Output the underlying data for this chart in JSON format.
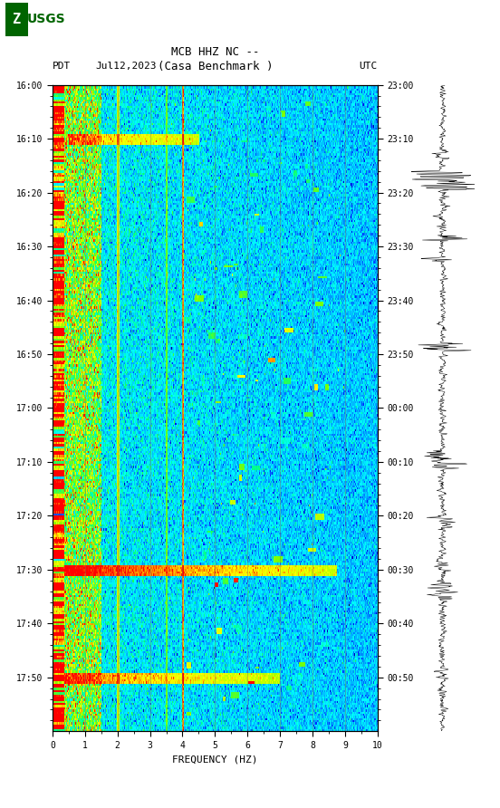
{
  "title_line1": "MCB HHZ NC --",
  "title_line2": "(Casa Benchmark )",
  "date_label": "Jul12,2023",
  "left_tz": "PDT",
  "right_tz": "UTC",
  "left_yticks": [
    "16:00",
    "16:10",
    "16:20",
    "16:30",
    "16:40",
    "16:50",
    "17:00",
    "17:10",
    "17:20",
    "17:30",
    "17:40",
    "17:50"
  ],
  "right_yticks": [
    "23:00",
    "23:10",
    "23:20",
    "23:30",
    "23:40",
    "23:50",
    "00:00",
    "00:10",
    "00:20",
    "00:30",
    "00:40",
    "00:50"
  ],
  "freq_min": 0,
  "freq_max": 10,
  "freq_label": "FREQUENCY (HZ)",
  "freq_ticks": [
    0,
    1,
    2,
    3,
    4,
    5,
    6,
    7,
    8,
    9,
    10
  ],
  "background_color": "#ffffff",
  "fig_width": 5.52,
  "fig_height": 8.92,
  "dpi": 100
}
